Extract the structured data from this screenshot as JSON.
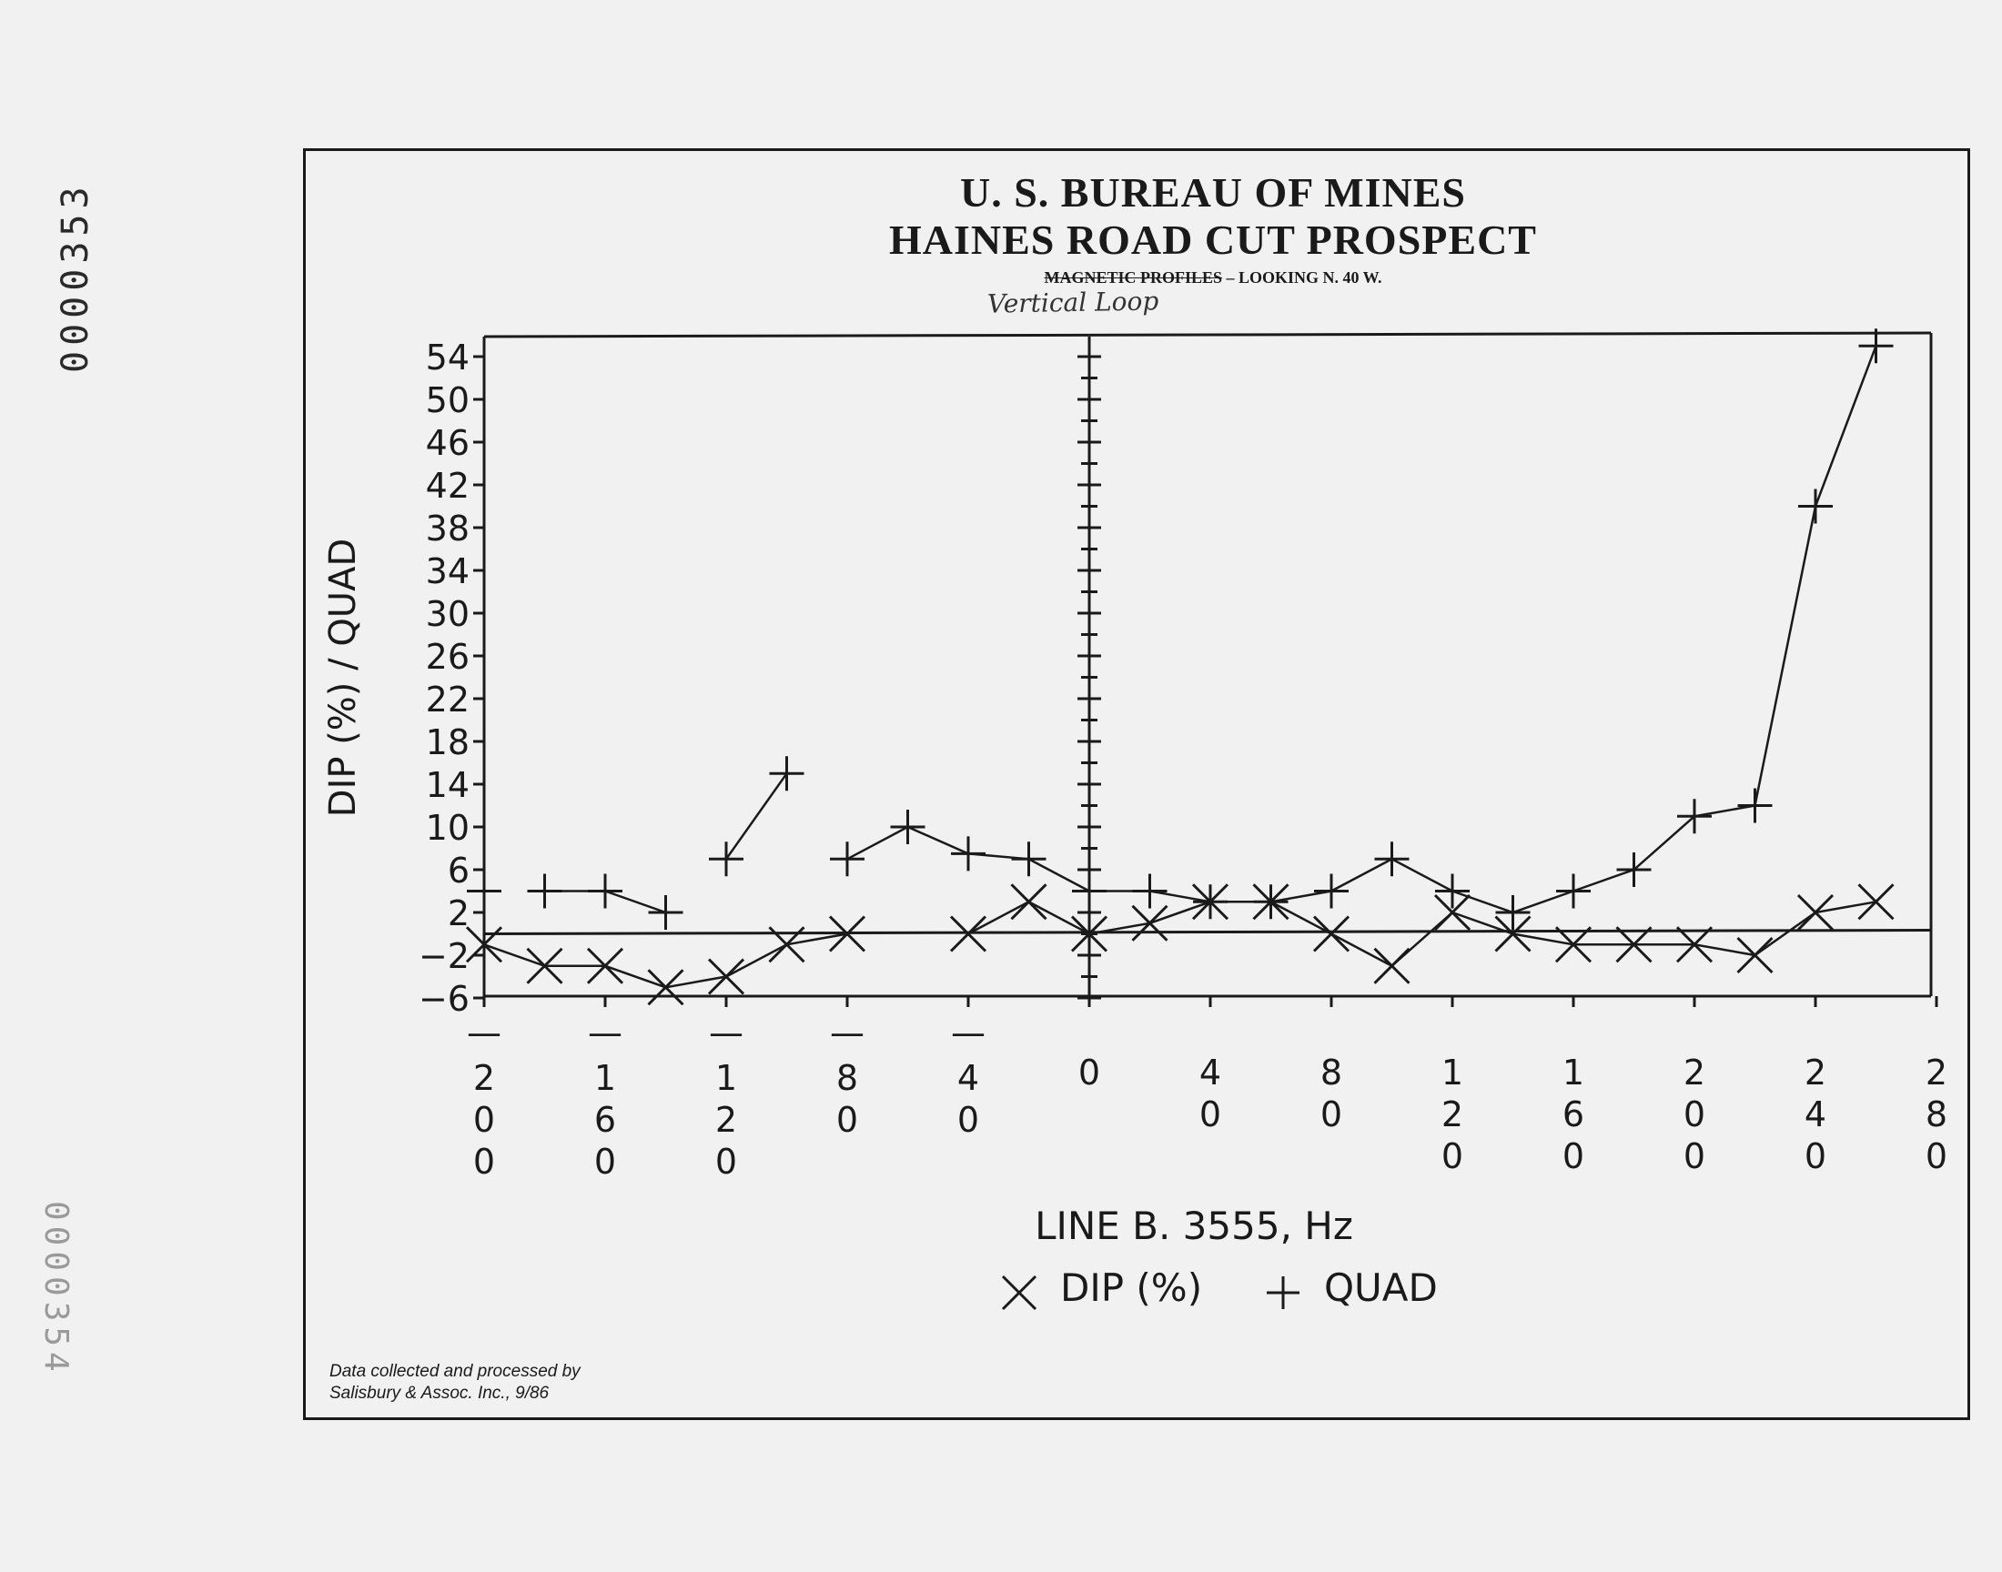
{
  "stamps": {
    "top": "0000353",
    "bottom": "0000354"
  },
  "header": {
    "title_line1": "U. S. BUREAU OF MINES",
    "title_line2": "HAINES ROAD CUT PROSPECT",
    "subtitle_struck": "MAGNETIC PROFILES",
    "subtitle_rest": "– LOOKING N. 40 W.",
    "handwritten_note": "Vertical Loop"
  },
  "credit": {
    "line1": "Data collected and processed by",
    "line2": "Salisbury & Assoc. Inc., 9/86"
  },
  "chart_data": {
    "type": "line",
    "xlabel": "LINE B. 3555, Hz",
    "ylabel": "DIP (%) / QUAD",
    "xlim": [
      -200,
      280
    ],
    "ylim": [
      -6,
      54
    ],
    "x_ticks": [
      "-200",
      "-160",
      "-120",
      "-80",
      "-40",
      "0",
      "40",
      "80",
      "120",
      "160",
      "200",
      "240",
      "280"
    ],
    "y_ticks": [
      "54",
      "50",
      "46",
      "42",
      "38",
      "34",
      "30",
      "26",
      "22",
      "18",
      "14",
      "10",
      "6",
      "2",
      "-2",
      "-6"
    ],
    "grid": false,
    "legend": {
      "placement": "bottom-center",
      "items": [
        {
          "symbol": "×",
          "label": "DIP (%)"
        },
        {
          "symbol": "+",
          "label": "QUAD"
        }
      ]
    },
    "series": [
      {
        "name": "DIP (%)",
        "marker": "x",
        "segments": [
          [
            {
              "x": -200,
              "y": -1
            },
            {
              "x": -180,
              "y": -3
            },
            {
              "x": -160,
              "y": -3
            },
            {
              "x": -140,
              "y": -5
            },
            {
              "x": -120,
              "y": -4
            },
            {
              "x": -100,
              "y": -1
            },
            {
              "x": -80,
              "y": 0
            }
          ],
          [
            {
              "x": -40,
              "y": 0
            },
            {
              "x": -20,
              "y": 3
            },
            {
              "x": 0,
              "y": 0
            },
            {
              "x": 20,
              "y": 1
            },
            {
              "x": 40,
              "y": 3
            },
            {
              "x": 60,
              "y": 3
            },
            {
              "x": 80,
              "y": 0
            },
            {
              "x": 100,
              "y": -3
            },
            {
              "x": 120,
              "y": 2
            },
            {
              "x": 140,
              "y": 0
            },
            {
              "x": 160,
              "y": -1
            },
            {
              "x": 180,
              "y": -1
            },
            {
              "x": 200,
              "y": -1
            },
            {
              "x": 220,
              "y": -2
            },
            {
              "x": 240,
              "y": 2
            },
            {
              "x": 260,
              "y": 3
            }
          ]
        ]
      },
      {
        "name": "QUAD",
        "marker": "+",
        "segments": [
          [
            {
              "x": -200,
              "y": 4
            }
          ],
          [
            {
              "x": -180,
              "y": 4
            },
            {
              "x": -160,
              "y": 4
            },
            {
              "x": -140,
              "y": 2
            }
          ],
          [
            {
              "x": -120,
              "y": 7
            },
            {
              "x": -100,
              "y": 15
            }
          ],
          [
            {
              "x": -80,
              "y": 7
            },
            {
              "x": -60,
              "y": 10
            },
            {
              "x": -40,
              "y": 7.5
            },
            {
              "x": -20,
              "y": 7
            },
            {
              "x": 0,
              "y": 4
            },
            {
              "x": 20,
              "y": 4
            },
            {
              "x": 40,
              "y": 3
            },
            {
              "x": 60,
              "y": 3
            },
            {
              "x": 80,
              "y": 4
            },
            {
              "x": 100,
              "y": 7
            },
            {
              "x": 120,
              "y": 4
            },
            {
              "x": 140,
              "y": 2
            },
            {
              "x": 160,
              "y": 4
            },
            {
              "x": 180,
              "y": 6
            },
            {
              "x": 200,
              "y": 11
            },
            {
              "x": 220,
              "y": 12
            },
            {
              "x": 240,
              "y": 40
            },
            {
              "x": 260,
              "y": 55
            }
          ]
        ]
      }
    ]
  }
}
